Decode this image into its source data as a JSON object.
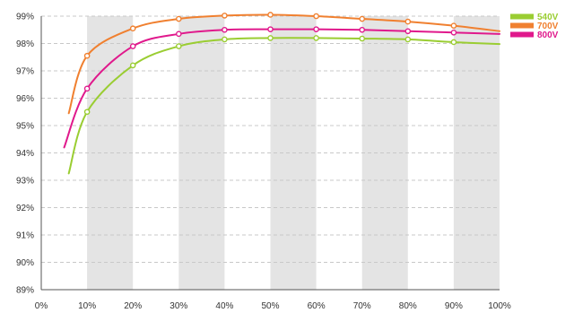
{
  "chart_data": {
    "type": "line",
    "title": "",
    "xlabel": "",
    "ylabel": "",
    "xlim": [
      0,
      100
    ],
    "ylim": [
      89,
      99
    ],
    "x_ticks": [
      "0%",
      "10%",
      "20%",
      "30%",
      "40%",
      "50%",
      "60%",
      "70%",
      "80%",
      "90%",
      "100%"
    ],
    "y_ticks": [
      "89%",
      "90%",
      "91%",
      "92%",
      "93%",
      "94%",
      "95%",
      "96%",
      "97%",
      "98%",
      "99%"
    ],
    "grid": "horizontal dashed lines with alternating shaded vertical bands",
    "legend_position": "top-right",
    "series": [
      {
        "name": "540V",
        "color": "#9acd32",
        "x": [
          6,
          10,
          20,
          30,
          40,
          50,
          60,
          70,
          80,
          90,
          100
        ],
        "y": [
          93.25,
          95.5,
          97.2,
          97.9,
          98.15,
          98.2,
          98.2,
          98.18,
          98.15,
          98.05,
          97.98
        ],
        "markers": [
          10,
          20,
          30,
          40,
          50,
          60,
          70,
          80,
          90
        ]
      },
      {
        "name": "700V",
        "color": "#f08030",
        "x": [
          6,
          10,
          20,
          30,
          40,
          50,
          60,
          70,
          80,
          90,
          100
        ],
        "y": [
          95.45,
          97.55,
          98.55,
          98.9,
          99.02,
          99.05,
          99.0,
          98.9,
          98.8,
          98.65,
          98.45
        ],
        "markers": [
          10,
          20,
          30,
          40,
          50,
          60,
          70,
          80,
          90
        ]
      },
      {
        "name": "800V",
        "color": "#e0198c",
        "x": [
          5,
          10,
          20,
          30,
          40,
          50,
          60,
          70,
          80,
          90,
          100
        ],
        "y": [
          94.2,
          96.35,
          97.9,
          98.35,
          98.5,
          98.52,
          98.52,
          98.5,
          98.45,
          98.4,
          98.35
        ],
        "markers": [
          10,
          20,
          30,
          40,
          50,
          60,
          70,
          80,
          90
        ]
      }
    ]
  }
}
